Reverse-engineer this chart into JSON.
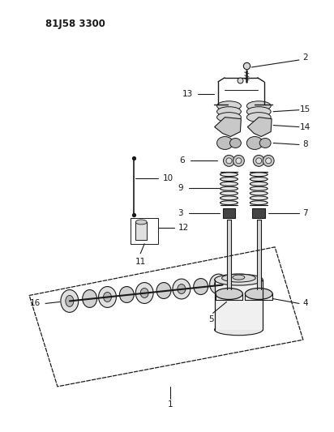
{
  "title": "81J58 3300",
  "bg_color": "#ffffff",
  "line_color": "#1a1a1a",
  "fig_width": 4.12,
  "fig_height": 5.33,
  "dpi": 100
}
